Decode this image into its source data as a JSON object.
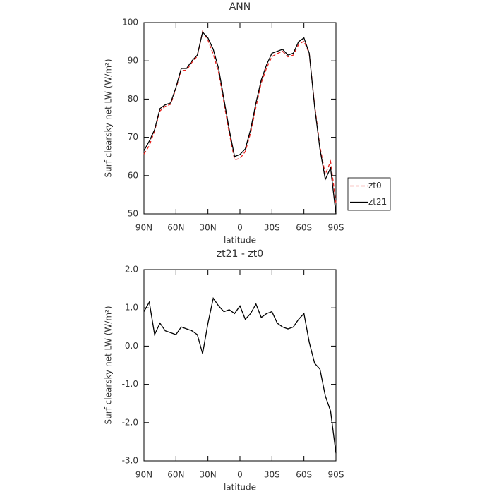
{
  "chart_data": [
    {
      "type": "line",
      "title": "ANN",
      "x_label": "latitude",
      "y_label": "Surf clearsky net LW (W/m²)",
      "x": [
        90,
        85,
        80,
        75,
        70,
        65,
        60,
        55,
        50,
        45,
        40,
        35,
        30,
        25,
        20,
        15,
        10,
        5,
        0,
        -5,
        -10,
        -15,
        -20,
        -25,
        -30,
        -35,
        -40,
        -45,
        -50,
        -55,
        -60,
        -65,
        -70,
        -75,
        -80,
        -85,
        -90
      ],
      "xlim": [
        90,
        -90
      ],
      "xticks": [
        {
          "value": 90,
          "label": "90N"
        },
        {
          "value": 60,
          "label": "60N"
        },
        {
          "value": 30,
          "label": "30N"
        },
        0,
        {
          "value": -30,
          "label": "30S"
        },
        {
          "value": -60,
          "label": "60S"
        },
        {
          "value": -90,
          "label": "90S"
        }
      ],
      "ylim": [
        50,
        100
      ],
      "yticks": [
        50,
        60,
        70,
        80,
        90,
        100
      ],
      "legend": "right",
      "series": [
        {
          "name": "zt0",
          "color": "#e8231f",
          "linestyle": "dashed",
          "values": [
            65.6,
            67.85,
            71.7,
            76.9,
            78.1,
            78.65,
            82.7,
            87.5,
            87.55,
            89.6,
            91.2,
            97.7,
            95.4,
            91.75,
            86.95,
            79.1,
            71.05,
            64.15,
            64.45,
            66.3,
            71.15,
            77.9,
            84.25,
            88.15,
            91.1,
            91.9,
            92.5,
            91.05,
            91.5,
            94.3,
            95.15,
            91.9,
            78.45,
            67.6,
            60.3,
            63.7,
            52.8
          ]
        },
        {
          "name": "zt21",
          "color": "#000000",
          "linestyle": "solid",
          "values": [
            66.5,
            69,
            72,
            77.5,
            78.5,
            79,
            83,
            88,
            88,
            90,
            91.5,
            97.5,
            96,
            93,
            88,
            80,
            72,
            65,
            65.5,
            67,
            72,
            79,
            85,
            89,
            92,
            92.5,
            93,
            91.5,
            92,
            95,
            96,
            92,
            78,
            67,
            59,
            62,
            50
          ]
        }
      ]
    },
    {
      "type": "line",
      "title": "zt21 - zt0",
      "x_label": "latitude",
      "y_label": "Surf clearsky net LW (W/m²)",
      "x": [
        90,
        85,
        80,
        75,
        70,
        65,
        60,
        55,
        50,
        45,
        40,
        35,
        30,
        25,
        20,
        15,
        10,
        5,
        0,
        -5,
        -10,
        -15,
        -20,
        -25,
        -30,
        -35,
        -40,
        -45,
        -50,
        -55,
        -60,
        -65,
        -70,
        -75,
        -80,
        -85,
        -90
      ],
      "xlim": [
        90,
        -90
      ],
      "xticks": [
        {
          "value": 90,
          "label": "90N"
        },
        {
          "value": 60,
          "label": "60N"
        },
        {
          "value": 30,
          "label": "30N"
        },
        0,
        {
          "value": -30,
          "label": "30S"
        },
        {
          "value": -60,
          "label": "60S"
        },
        {
          "value": -90,
          "label": "90S"
        }
      ],
      "ylim": [
        -3,
        2
      ],
      "yticks": [
        {
          "value": -3,
          "label": "-3.0"
        },
        {
          "value": -2,
          "label": "-2.0"
        },
        {
          "value": -1,
          "label": "-1.0"
        },
        {
          "value": 0,
          "label": "0.0"
        },
        {
          "value": 1,
          "label": "1.0"
        },
        {
          "value": 2,
          "label": "2.0"
        }
      ],
      "color": "#000000",
      "values": [
        0.9,
        1.15,
        0.3,
        0.6,
        0.4,
        0.35,
        0.3,
        0.5,
        0.45,
        0.4,
        0.3,
        -0.2,
        0.6,
        1.25,
        1.05,
        0.9,
        0.95,
        0.85,
        1.05,
        0.7,
        0.85,
        1.1,
        0.75,
        0.85,
        0.9,
        0.6,
        0.5,
        0.45,
        0.5,
        0.7,
        0.85,
        0.1,
        -0.45,
        -0.6,
        -1.3,
        -1.7,
        -2.8
      ]
    }
  ]
}
